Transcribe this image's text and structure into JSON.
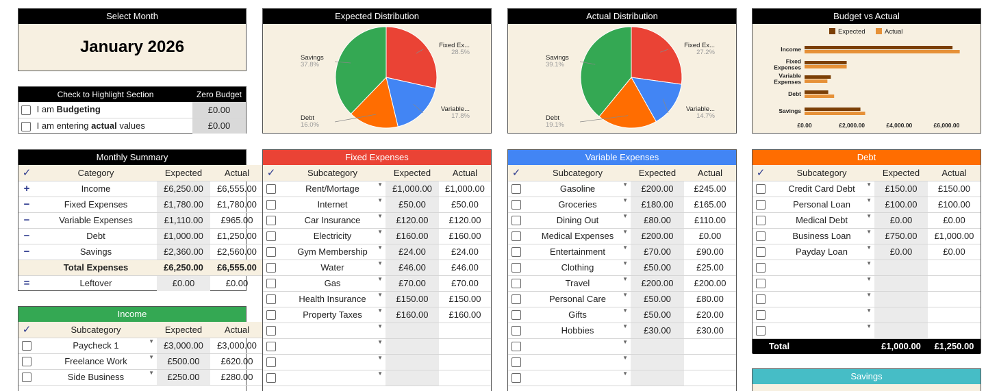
{
  "select_month": {
    "header": "Select Month",
    "month": "January 2026"
  },
  "highlight": {
    "header": "Check to Highlight Section",
    "zero_header": "Zero Budget",
    "rows": [
      {
        "prefix": "I am ",
        "bold": "Budgeting",
        "suffix": "",
        "value": "£0.00"
      },
      {
        "prefix": "I am entering ",
        "bold": "actual",
        "suffix": " values",
        "value": "£0.00"
      }
    ]
  },
  "expected_dist": {
    "title": "Expected Distribution",
    "labels": [
      {
        "name": "Fixed Ex...",
        "pct": "28.5%"
      },
      {
        "name": "Variable...",
        "pct": "17.8%"
      },
      {
        "name": "Debt",
        "pct": "16.0%"
      },
      {
        "name": "Savings",
        "pct": "37.8%"
      }
    ]
  },
  "actual_dist": {
    "title": "Actual Distribution",
    "labels": [
      {
        "name": "Fixed Ex...",
        "pct": "27.2%"
      },
      {
        "name": "Variable...",
        "pct": "14.7%"
      },
      {
        "name": "Debt",
        "pct": "19.1%"
      },
      {
        "name": "Savings",
        "pct": "39.1%"
      }
    ]
  },
  "chart_data": [
    {
      "type": "pie",
      "title": "Expected Distribution",
      "categories": [
        "Fixed Ex...",
        "Variable...",
        "Debt",
        "Savings"
      ],
      "values": [
        28.5,
        17.8,
        16.0,
        37.8
      ],
      "colors": [
        "#ea4335",
        "#4285f4",
        "#ff6d01",
        "#34a853"
      ]
    },
    {
      "type": "pie",
      "title": "Actual Distribution",
      "categories": [
        "Fixed Ex...",
        "Variable...",
        "Debt",
        "Savings"
      ],
      "values": [
        27.2,
        14.7,
        19.1,
        39.1
      ],
      "colors": [
        "#ea4335",
        "#4285f4",
        "#ff6d01",
        "#34a853"
      ]
    },
    {
      "type": "bar",
      "title": "Budget vs Actual",
      "categories": [
        "Income",
        "Fixed Expenses",
        "Variable Expenses",
        "Debt",
        "Savings"
      ],
      "series": [
        {
          "name": "Expected",
          "values": [
            6250,
            1780,
            1110,
            1000,
            2360
          ],
          "color": "#7b3f06"
        },
        {
          "name": "Actual",
          "values": [
            6555,
            1780,
            965,
            1250,
            2560
          ],
          "color": "#e69138"
        }
      ],
      "xlim": [
        0,
        7000
      ],
      "ticks": [
        "£0.00",
        "£2,000.00",
        "£4,000.00",
        "£6,000.00"
      ],
      "legend": "top"
    }
  ],
  "bva": {
    "title": "Budget vs Actual",
    "legend_expected": "Expected",
    "legend_actual": "Actual"
  },
  "summary": {
    "header": "Monthly Summary",
    "cols": [
      "✓",
      "Category",
      "Expected",
      "Actual"
    ],
    "rows": [
      {
        "op": "+",
        "cat": "Income",
        "exp": "£6,250.00",
        "act": "£6,555.00"
      },
      {
        "op": "−",
        "cat": "Fixed Expenses",
        "exp": "£1,780.00",
        "act": "£1,780.00"
      },
      {
        "op": "−",
        "cat": "Variable Expenses",
        "exp": "£1,110.00",
        "act": "£965.00"
      },
      {
        "op": "−",
        "cat": "Debt",
        "exp": "£1,000.00",
        "act": "£1,250.00"
      },
      {
        "op": "−",
        "cat": "Savings",
        "exp": "£2,360.00",
        "act": "£2,560.00"
      }
    ],
    "total": {
      "label": "Total Expenses",
      "exp": "£6,250.00",
      "act": "£6,555.00"
    },
    "leftover": {
      "op": "=",
      "label": "Leftover",
      "exp": "£0.00",
      "act": "£0.00"
    }
  },
  "income": {
    "header": "Income",
    "cols": [
      "Subcategory",
      "Expected",
      "Actual"
    ],
    "rows": [
      {
        "sub": "Paycheck 1",
        "exp": "£3,000.00",
        "act": "£3,000.00"
      },
      {
        "sub": "Freelance Work",
        "exp": "£500.00",
        "act": "£620.00"
      },
      {
        "sub": "Side Business",
        "exp": "£250.00",
        "act": "£280.00"
      }
    ]
  },
  "fixed": {
    "header": "Fixed Expenses",
    "cols": [
      "Subcategory",
      "Expected",
      "Actual"
    ],
    "rows": [
      {
        "sub": "Rent/Mortage",
        "exp": "£1,000.00",
        "act": "£1,000.00"
      },
      {
        "sub": "Internet",
        "exp": "£50.00",
        "act": "£50.00"
      },
      {
        "sub": "Car Insurance",
        "exp": "£120.00",
        "act": "£120.00"
      },
      {
        "sub": "Electricity",
        "exp": "£160.00",
        "act": "£160.00"
      },
      {
        "sub": "Gym Membership",
        "exp": "£24.00",
        "act": "£24.00"
      },
      {
        "sub": "Water",
        "exp": "£46.00",
        "act": "£46.00"
      },
      {
        "sub": "Gas",
        "exp": "£70.00",
        "act": "£70.00"
      },
      {
        "sub": "Health Insurance",
        "exp": "£150.00",
        "act": "£150.00"
      },
      {
        "sub": "Property Taxes",
        "exp": "£160.00",
        "act": "£160.00"
      },
      {
        "sub": "",
        "exp": "",
        "act": ""
      },
      {
        "sub": "",
        "exp": "",
        "act": ""
      },
      {
        "sub": "",
        "exp": "",
        "act": ""
      },
      {
        "sub": "",
        "exp": "",
        "act": ""
      }
    ]
  },
  "variable": {
    "header": "Variable Expenses",
    "cols": [
      "Subcategory",
      "Expected",
      "Actual"
    ],
    "rows": [
      {
        "sub": "Gasoline",
        "exp": "£200.00",
        "act": "£245.00"
      },
      {
        "sub": "Groceries",
        "exp": "£180.00",
        "act": "£165.00"
      },
      {
        "sub": "Dining Out",
        "exp": "£80.00",
        "act": "£110.00"
      },
      {
        "sub": "Medical Expenses",
        "exp": "£200.00",
        "act": "£0.00"
      },
      {
        "sub": "Entertainment",
        "exp": "£70.00",
        "act": "£90.00"
      },
      {
        "sub": "Clothing",
        "exp": "£50.00",
        "act": "£25.00"
      },
      {
        "sub": "Travel",
        "exp": "£200.00",
        "act": "£200.00"
      },
      {
        "sub": "Personal Care",
        "exp": "£50.00",
        "act": "£80.00"
      },
      {
        "sub": "Gifts",
        "exp": "£50.00",
        "act": "£20.00"
      },
      {
        "sub": "Hobbies",
        "exp": "£30.00",
        "act": "£30.00"
      },
      {
        "sub": "",
        "exp": "",
        "act": ""
      },
      {
        "sub": "",
        "exp": "",
        "act": ""
      },
      {
        "sub": "",
        "exp": "",
        "act": ""
      }
    ]
  },
  "debt": {
    "header": "Debt",
    "cols": [
      "Subcategory",
      "Expected",
      "Actual"
    ],
    "rows": [
      {
        "sub": "Credit Card Debt",
        "exp": "£150.00",
        "act": "£150.00"
      },
      {
        "sub": "Personal Loan",
        "exp": "£100.00",
        "act": "£100.00"
      },
      {
        "sub": "Medical Debt",
        "exp": "£0.00",
        "act": "£0.00"
      },
      {
        "sub": "Business Loan",
        "exp": "£750.00",
        "act": "£1,000.00"
      },
      {
        "sub": "Payday Loan",
        "exp": "£0.00",
        "act": "£0.00"
      },
      {
        "sub": "",
        "exp": "",
        "act": ""
      },
      {
        "sub": "",
        "exp": "",
        "act": ""
      },
      {
        "sub": "",
        "exp": "",
        "act": ""
      },
      {
        "sub": "",
        "exp": "",
        "act": ""
      },
      {
        "sub": "",
        "exp": "",
        "act": ""
      }
    ],
    "total": {
      "label": "Total",
      "exp": "£1,000.00",
      "act": "£1,250.00"
    }
  },
  "savings": {
    "header": "Savings"
  },
  "colors": {
    "fixed": "#ea4335",
    "variable": "#4285f4",
    "debt": "#ff6d01",
    "income": "#34a853",
    "savings": "#46bdc6",
    "cream": "#f7f0e1"
  }
}
